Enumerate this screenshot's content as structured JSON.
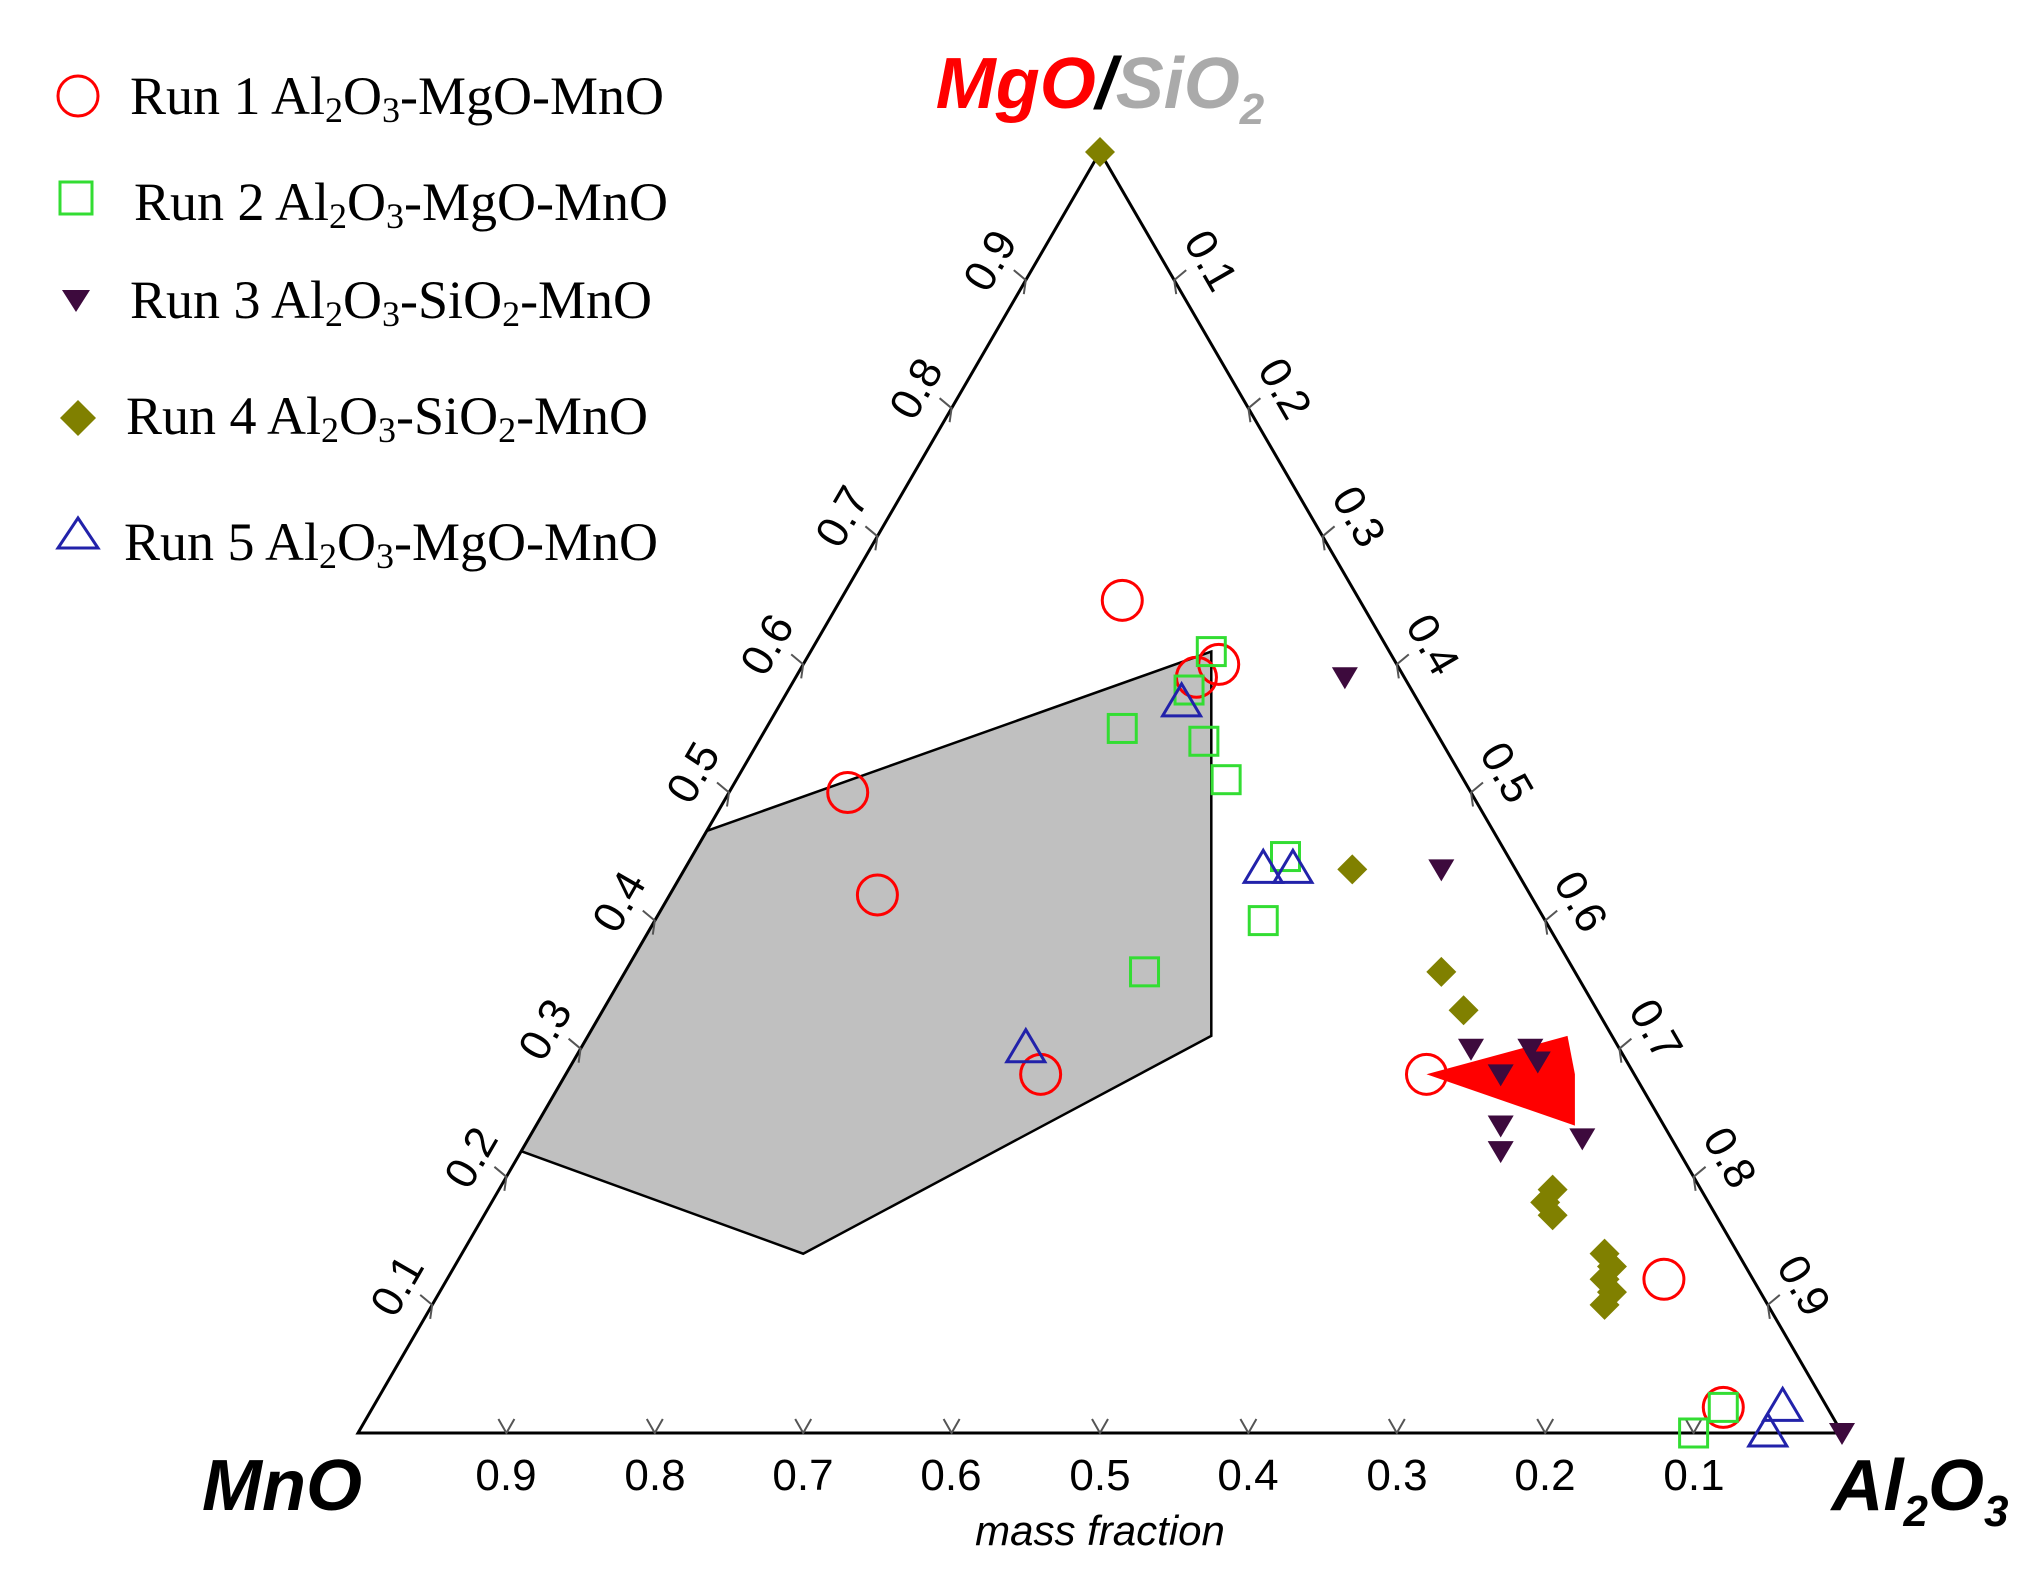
{
  "chart_data": {
    "type": "scatter",
    "subtype": "ternary",
    "axis_caption": "mass fraction",
    "vertices": {
      "top": {
        "part1": "MgO",
        "separator": "/",
        "part2": "SiO",
        "part2_sub": "2",
        "part1_color": "#ff0000",
        "part2_color": "#aaaaaa"
      },
      "left": {
        "label": "MnO"
      },
      "right": {
        "label": "Al",
        "sub1": "2",
        "mid": "O",
        "sub2": "3"
      }
    },
    "ticks": {
      "left_edge": [
        "0.1",
        "0.2",
        "0.3",
        "0.4",
        "0.5",
        "0.6",
        "0.7",
        "0.8",
        "0.9"
      ],
      "right_edge": [
        "0.1",
        "0.2",
        "0.3",
        "0.4",
        "0.5",
        "0.6",
        "0.7",
        "0.8",
        "0.9"
      ],
      "bottom_edge": [
        "0.9",
        "0.8",
        "0.7",
        "0.6",
        "0.5",
        "0.4",
        "0.3",
        "0.2",
        "0.1"
      ]
    },
    "coordinate_note": "each point is [top component fraction, Al2O3 fraction]; MnO = 1 - sum",
    "series": [
      {
        "name": "Run 1",
        "label_parts": [
          "Run 1 Al",
          "2",
          "O",
          "3",
          "-MgO-MnO"
        ],
        "marker": "circle-open",
        "color": "#ff0000",
        "points": [
          [
            0.65,
            0.19
          ],
          [
            0.6,
            0.28
          ],
          [
            0.59,
            0.27
          ],
          [
            0.5,
            0.08
          ],
          [
            0.42,
            0.14
          ],
          [
            0.28,
            0.32
          ],
          [
            0.28,
            0.58
          ],
          [
            0.12,
            0.82
          ],
          [
            0.02,
            0.91
          ]
        ]
      },
      {
        "name": "Run 2",
        "label_parts": [
          "Run 2 Al",
          "2",
          "O",
          "3",
          "-MgO-MnO"
        ],
        "marker": "square-open",
        "color": "#33dd33",
        "points": [
          [
            0.61,
            0.27
          ],
          [
            0.58,
            0.27
          ],
          [
            0.55,
            0.24
          ],
          [
            0.54,
            0.3
          ],
          [
            0.51,
            0.33
          ],
          [
            0.45,
            0.4
          ],
          [
            0.4,
            0.41
          ],
          [
            0.36,
            0.35
          ],
          [
            0.02,
            0.91
          ],
          [
            0.0,
            0.9
          ]
        ]
      },
      {
        "name": "Run 3",
        "label_parts": [
          "Run 3 Al",
          "2",
          "O",
          "3",
          "-SiO",
          "2",
          "-MnO"
        ],
        "marker": "triangle-down-filled",
        "color": "#3d0a3d",
        "points": [
          [
            0.59,
            0.37
          ],
          [
            0.44,
            0.51
          ],
          [
            0.3,
            0.6
          ],
          [
            0.3,
            0.64
          ],
          [
            0.29,
            0.65
          ],
          [
            0.28,
            0.63
          ],
          [
            0.24,
            0.65
          ],
          [
            0.22,
            0.66
          ],
          [
            0.23,
            0.71
          ],
          [
            0.0,
            1.0
          ]
        ]
      },
      {
        "name": "Run 4",
        "label_parts": [
          "Run 4 Al",
          "2",
          "O",
          "3",
          "-SiO",
          "2",
          "-MnO"
        ],
        "marker": "diamond-filled",
        "color": "#808000",
        "points": [
          [
            1.0,
            0.0
          ],
          [
            0.44,
            0.45
          ],
          [
            0.36,
            0.55
          ],
          [
            0.33,
            0.58
          ],
          [
            0.19,
            0.71
          ],
          [
            0.18,
            0.71
          ],
          [
            0.17,
            0.72
          ],
          [
            0.14,
            0.77
          ],
          [
            0.13,
            0.78
          ],
          [
            0.12,
            0.78
          ],
          [
            0.11,
            0.79
          ],
          [
            0.1,
            0.79
          ]
        ]
      },
      {
        "name": "Run 5",
        "label_parts": [
          "Run 5 Al",
          "2",
          "O",
          "3",
          "-MgO-MnO"
        ],
        "marker": "triangle-up-open",
        "color": "#2222aa",
        "points": [
          [
            0.57,
            0.27
          ],
          [
            0.44,
            0.39
          ],
          [
            0.44,
            0.41
          ],
          [
            0.3,
            0.3
          ],
          [
            0.02,
            0.95
          ],
          [
            0.0,
            0.95
          ]
        ]
      }
    ],
    "regions": [
      {
        "name": "gray-liquid-region",
        "color": "#c0c0c0",
        "stroke": "#000000",
        "boundary": [
          [
            0.61,
            0.27
          ],
          [
            0.47,
            0.0
          ],
          [
            0.22,
            0.0
          ],
          [
            0.14,
            0.23
          ],
          [
            0.31,
            0.42
          ],
          [
            0.61,
            0.27
          ]
        ]
      },
      {
        "name": "red-liquid-region",
        "color": "#ff0000",
        "boundary": [
          [
            0.28,
            0.58
          ],
          [
            0.31,
            0.66
          ],
          [
            0.28,
            0.68
          ],
          [
            0.24,
            0.7
          ],
          [
            0.28,
            0.58
          ]
        ]
      }
    ]
  }
}
